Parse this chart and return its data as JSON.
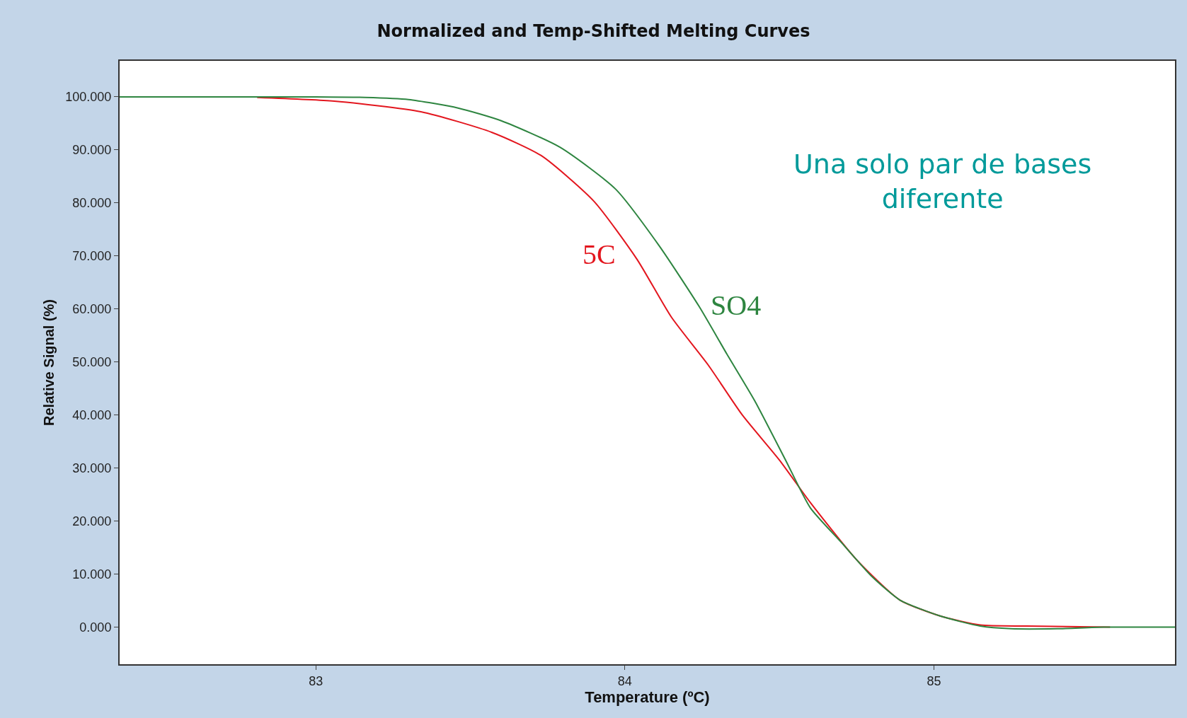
{
  "chart_data": {
    "type": "line",
    "title": "Normalized and Temp-Shifted Melting Curves",
    "xlabel": "Temperature (ºC)",
    "ylabel": "Relative Signal (%)",
    "annotations": [
      "Una solo par de bases diferente"
    ],
    "series": [
      {
        "name": "5C",
        "color": "#e3161e",
        "x": [
          82.81,
          83.06,
          83.34,
          83.57,
          83.73,
          83.9,
          84.04,
          84.15,
          84.27,
          84.38,
          84.5,
          84.6,
          84.75,
          84.89,
          85.02,
          85.15,
          85.3,
          85.57
        ],
        "values": [
          99.9,
          99.2,
          97.2,
          93.3,
          88.9,
          80.3,
          69.3,
          58.5,
          49.4,
          40,
          31.5,
          23.5,
          12.7,
          5.1,
          2.1,
          0.4,
          0.2,
          0
        ]
      },
      {
        "name": "SO4",
        "color": "#2e8540",
        "x": [
          82.365,
          83.0,
          83.16,
          83.3,
          83.46,
          83.6,
          83.79,
          83.97,
          84.11,
          84.24,
          84.33,
          84.42,
          84.52,
          84.6,
          84.7,
          84.8,
          84.89,
          85.02,
          85.15,
          85.25,
          85.4,
          85.55,
          85.78
        ],
        "values": [
          100,
          100,
          99.9,
          99.5,
          97.9,
          95.5,
          90.5,
          82.6,
          72,
          60.5,
          51.5,
          42.7,
          31.5,
          22.5,
          16,
          9.5,
          5.1,
          2.1,
          0.2,
          -0.3,
          -0.3,
          0,
          0
        ]
      }
    ],
    "xlim": [
      82.365,
      85.78
    ],
    "xticks": [
      83,
      84,
      85
    ],
    "ylim": [
      -7,
      106.8
    ],
    "yticks": [
      {
        "value": 0,
        "label": "0.000"
      },
      {
        "value": 10,
        "label": "10.000"
      },
      {
        "value": 20,
        "label": "20.000"
      },
      {
        "value": 30,
        "label": "30.000"
      },
      {
        "value": 40,
        "label": "40.000"
      },
      {
        "value": 50,
        "label": "50.000"
      },
      {
        "value": 60,
        "label": "60.000"
      },
      {
        "value": 70,
        "label": "70.000"
      },
      {
        "value": 80,
        "label": "80.000"
      },
      {
        "value": 90,
        "label": "90.000"
      },
      {
        "value": 100,
        "label": "100.000"
      }
    ],
    "grid": false,
    "legend": false,
    "marker": "none",
    "line_style": "solid"
  }
}
